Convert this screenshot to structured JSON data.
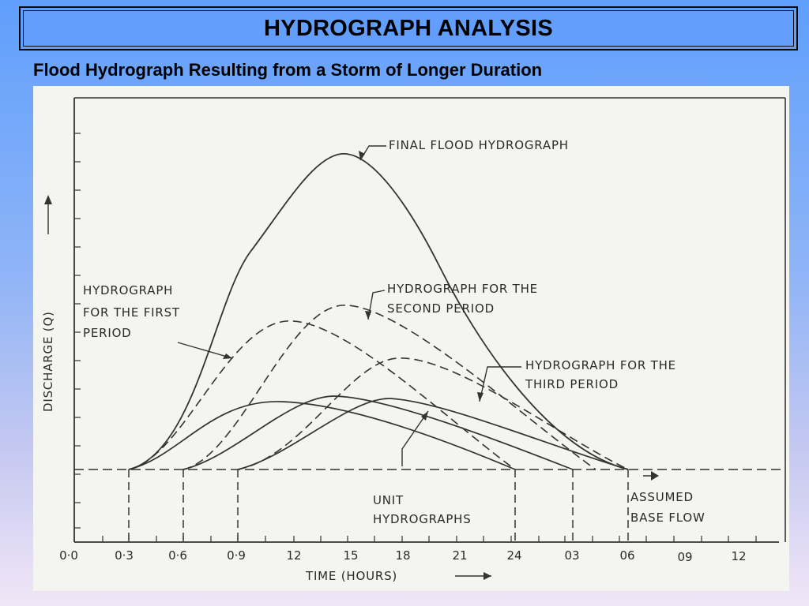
{
  "slide": {
    "title": "HYDROGRAPH ANALYSIS",
    "subtitle": "Flood Hydrograph Resulting from a Storm of Longer Duration"
  },
  "figure": {
    "x_axis_label": "TIME (HOURS)",
    "y_axis_label": "DISCHARGE (Q)",
    "x_ticks": [
      "0·0",
      "0·3",
      "0·6",
      "0·9",
      "12",
      "15",
      "18",
      "21",
      "24",
      "03",
      "06",
      "09",
      "12"
    ],
    "annotations": {
      "final": "FINAL FLOOD HYDROGRAPH",
      "first": [
        "HYDROGRAPH",
        "FOR THE FIRST",
        "PERIOD"
      ],
      "second": [
        "HYDROGRAPH FOR THE",
        "SECOND PERIOD"
      ],
      "third": [
        "HYDROGRAPH FOR THE",
        "THIRD PERIOD"
      ],
      "unit": [
        "UNIT",
        "HYDROGRAPHS"
      ],
      "base": [
        "ASSUMED",
        "BASE FLOW"
      ]
    }
  }
}
